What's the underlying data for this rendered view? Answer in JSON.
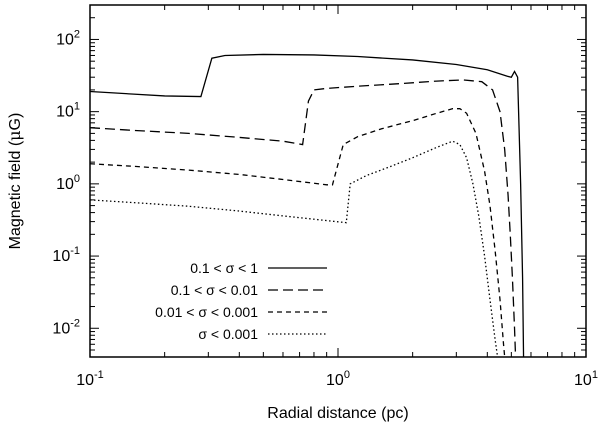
{
  "chart_data": {
    "type": "line",
    "xlabel": "Radial distance (pc)",
    "ylabel_parts": {
      "prefix": "Magnetic field (",
      "mu": "μ",
      "suffix": "G)"
    },
    "x_scale": "log",
    "y_scale": "log",
    "xlim": [
      0.1,
      10
    ],
    "ylim": [
      0.004,
      300
    ],
    "x_ticks": [
      {
        "value": 0.1,
        "base": "10",
        "exp": "-1"
      },
      {
        "value": 1,
        "base": "10",
        "exp": "0"
      },
      {
        "value": 10,
        "base": "10",
        "exp": "1"
      }
    ],
    "y_ticks": [
      {
        "value": 0.01,
        "base": "10",
        "exp": "-2"
      },
      {
        "value": 0.1,
        "base": "10",
        "exp": "-1"
      },
      {
        "value": 1,
        "base": "10",
        "exp": "0"
      },
      {
        "value": 10,
        "base": "10",
        "exp": "1"
      },
      {
        "value": 100,
        "base": "10",
        "exp": "2"
      }
    ],
    "grid": false,
    "legend_position": "bottom-left",
    "series": [
      {
        "name": "0.1 < σ < 1",
        "dash": "solid",
        "points": [
          [
            0.1,
            19
          ],
          [
            0.15,
            17.5
          ],
          [
            0.2,
            16.5
          ],
          [
            0.28,
            16.2
          ],
          [
            0.31,
            55
          ],
          [
            0.35,
            60
          ],
          [
            0.5,
            62
          ],
          [
            0.8,
            61
          ],
          [
            1.2,
            58
          ],
          [
            2,
            52
          ],
          [
            3,
            45
          ],
          [
            4,
            38
          ],
          [
            4.8,
            31
          ],
          [
            5.0,
            30
          ],
          [
            5.15,
            36
          ],
          [
            5.3,
            30
          ],
          [
            5.45,
            1
          ],
          [
            5.55,
            0.05
          ],
          [
            5.6,
            0.004
          ]
        ]
      },
      {
        "name": "0.1 < σ < 0.01",
        "dash": "long-dash",
        "points": [
          [
            0.1,
            6.0
          ],
          [
            0.15,
            5.5
          ],
          [
            0.25,
            5.0
          ],
          [
            0.4,
            4.4
          ],
          [
            0.6,
            3.9
          ],
          [
            0.72,
            3.5
          ],
          [
            0.76,
            14
          ],
          [
            0.8,
            20
          ],
          [
            0.9,
            21
          ],
          [
            1.2,
            22.5
          ],
          [
            1.8,
            24.5
          ],
          [
            2.5,
            26.5
          ],
          [
            3.2,
            27.5
          ],
          [
            3.8,
            26
          ],
          [
            4.2,
            20
          ],
          [
            4.5,
            10
          ],
          [
            4.7,
            3
          ],
          [
            4.85,
            0.7
          ],
          [
            4.95,
            0.2
          ],
          [
            5.05,
            0.05
          ],
          [
            5.15,
            0.01
          ],
          [
            5.2,
            0.004
          ]
        ]
      },
      {
        "name": "0.01 < σ < 0.001",
        "dash": "short-dash",
        "points": [
          [
            0.1,
            1.9
          ],
          [
            0.15,
            1.75
          ],
          [
            0.25,
            1.55
          ],
          [
            0.4,
            1.35
          ],
          [
            0.6,
            1.15
          ],
          [
            0.9,
            0.97
          ],
          [
            0.95,
            0.97
          ],
          [
            1.05,
            3.5
          ],
          [
            1.2,
            4.5
          ],
          [
            1.5,
            5.8
          ],
          [
            2.0,
            7.5
          ],
          [
            2.5,
            9.5
          ],
          [
            2.9,
            11
          ],
          [
            3.1,
            11
          ],
          [
            3.3,
            9.5
          ],
          [
            3.6,
            5
          ],
          [
            3.9,
            1.5
          ],
          [
            4.1,
            0.5
          ],
          [
            4.3,
            0.12
          ],
          [
            4.5,
            0.025
          ],
          [
            4.65,
            0.006
          ],
          [
            4.7,
            0.004
          ]
        ]
      },
      {
        "name": "σ < 0.001",
        "dash": "dotted",
        "points": [
          [
            0.1,
            0.6
          ],
          [
            0.15,
            0.55
          ],
          [
            0.25,
            0.49
          ],
          [
            0.4,
            0.42
          ],
          [
            0.6,
            0.36
          ],
          [
            0.9,
            0.31
          ],
          [
            1.08,
            0.29
          ],
          [
            1.12,
            1.0
          ],
          [
            1.3,
            1.3
          ],
          [
            1.6,
            1.7
          ],
          [
            2.0,
            2.3
          ],
          [
            2.5,
            3.2
          ],
          [
            2.9,
            3.9
          ],
          [
            3.1,
            3.5
          ],
          [
            3.3,
            2.3
          ],
          [
            3.5,
            1.0
          ],
          [
            3.7,
            0.35
          ],
          [
            3.9,
            0.1
          ],
          [
            4.1,
            0.025
          ],
          [
            4.3,
            0.007
          ],
          [
            4.4,
            0.004
          ]
        ]
      }
    ]
  }
}
